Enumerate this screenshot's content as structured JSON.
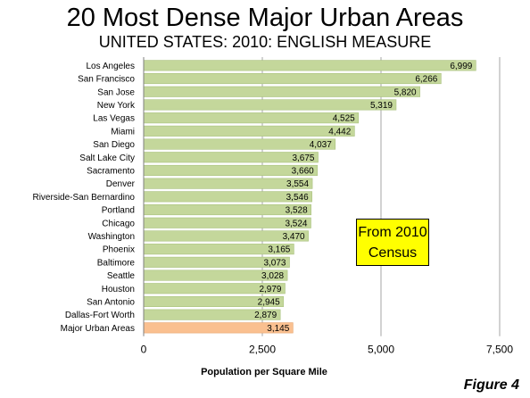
{
  "title": "20 Most Dense Major Urban Areas",
  "subtitle": "UNITED STATES: 2010: ENGLISH MEASURE",
  "callout": {
    "line1": "From 2010",
    "line2": "Census"
  },
  "figure_label": "Figure 4",
  "colors": {
    "bar": "#c4d79b",
    "highlight": "#fac090",
    "callout": "#ffff00",
    "grid": "#a6a6a6"
  },
  "chart_data": {
    "type": "bar",
    "orientation": "horizontal",
    "title": "20 Most Dense Major Urban Areas",
    "subtitle": "UNITED STATES: 2010: ENGLISH MEASURE",
    "xlabel": "Population per Square Mile",
    "ylabel": "",
    "xlim": [
      0,
      7500
    ],
    "ticks": [
      0,
      2500,
      5000,
      7500
    ],
    "tick_labels": [
      "0",
      "2,500",
      "5,000",
      "7,500"
    ],
    "grid": "vertical",
    "categories": [
      "Los Angeles",
      "San Francisco",
      "San Jose",
      "New York",
      "Las Vegas",
      "Miami",
      "San Diego",
      "Salt Lake City",
      "Sacramento",
      "Denver",
      "Riverside-San Bernardino",
      "Portland",
      "Chicago",
      "Washington",
      "Phoenix",
      "Baltimore",
      "Seattle",
      "Houston",
      "San Antonio",
      "Dallas-Fort Worth",
      "Major Urban Areas"
    ],
    "values": [
      6999,
      6266,
      5820,
      5319,
      4525,
      4442,
      4037,
      3675,
      3660,
      3554,
      3546,
      3528,
      3524,
      3470,
      3165,
      3073,
      3028,
      2979,
      2945,
      2879,
      3145
    ],
    "value_labels": [
      "6,999",
      "6,266",
      "5,820",
      "5,319",
      "4,525",
      "4,442",
      "4,037",
      "3,675",
      "3,660",
      "3,554",
      "3,546",
      "3,528",
      "3,524",
      "3,470",
      "3,165",
      "3,073",
      "3,028",
      "2,979",
      "2,945",
      "2,879",
      "3,145"
    ],
    "highlight_category": "Major Urban Areas"
  }
}
